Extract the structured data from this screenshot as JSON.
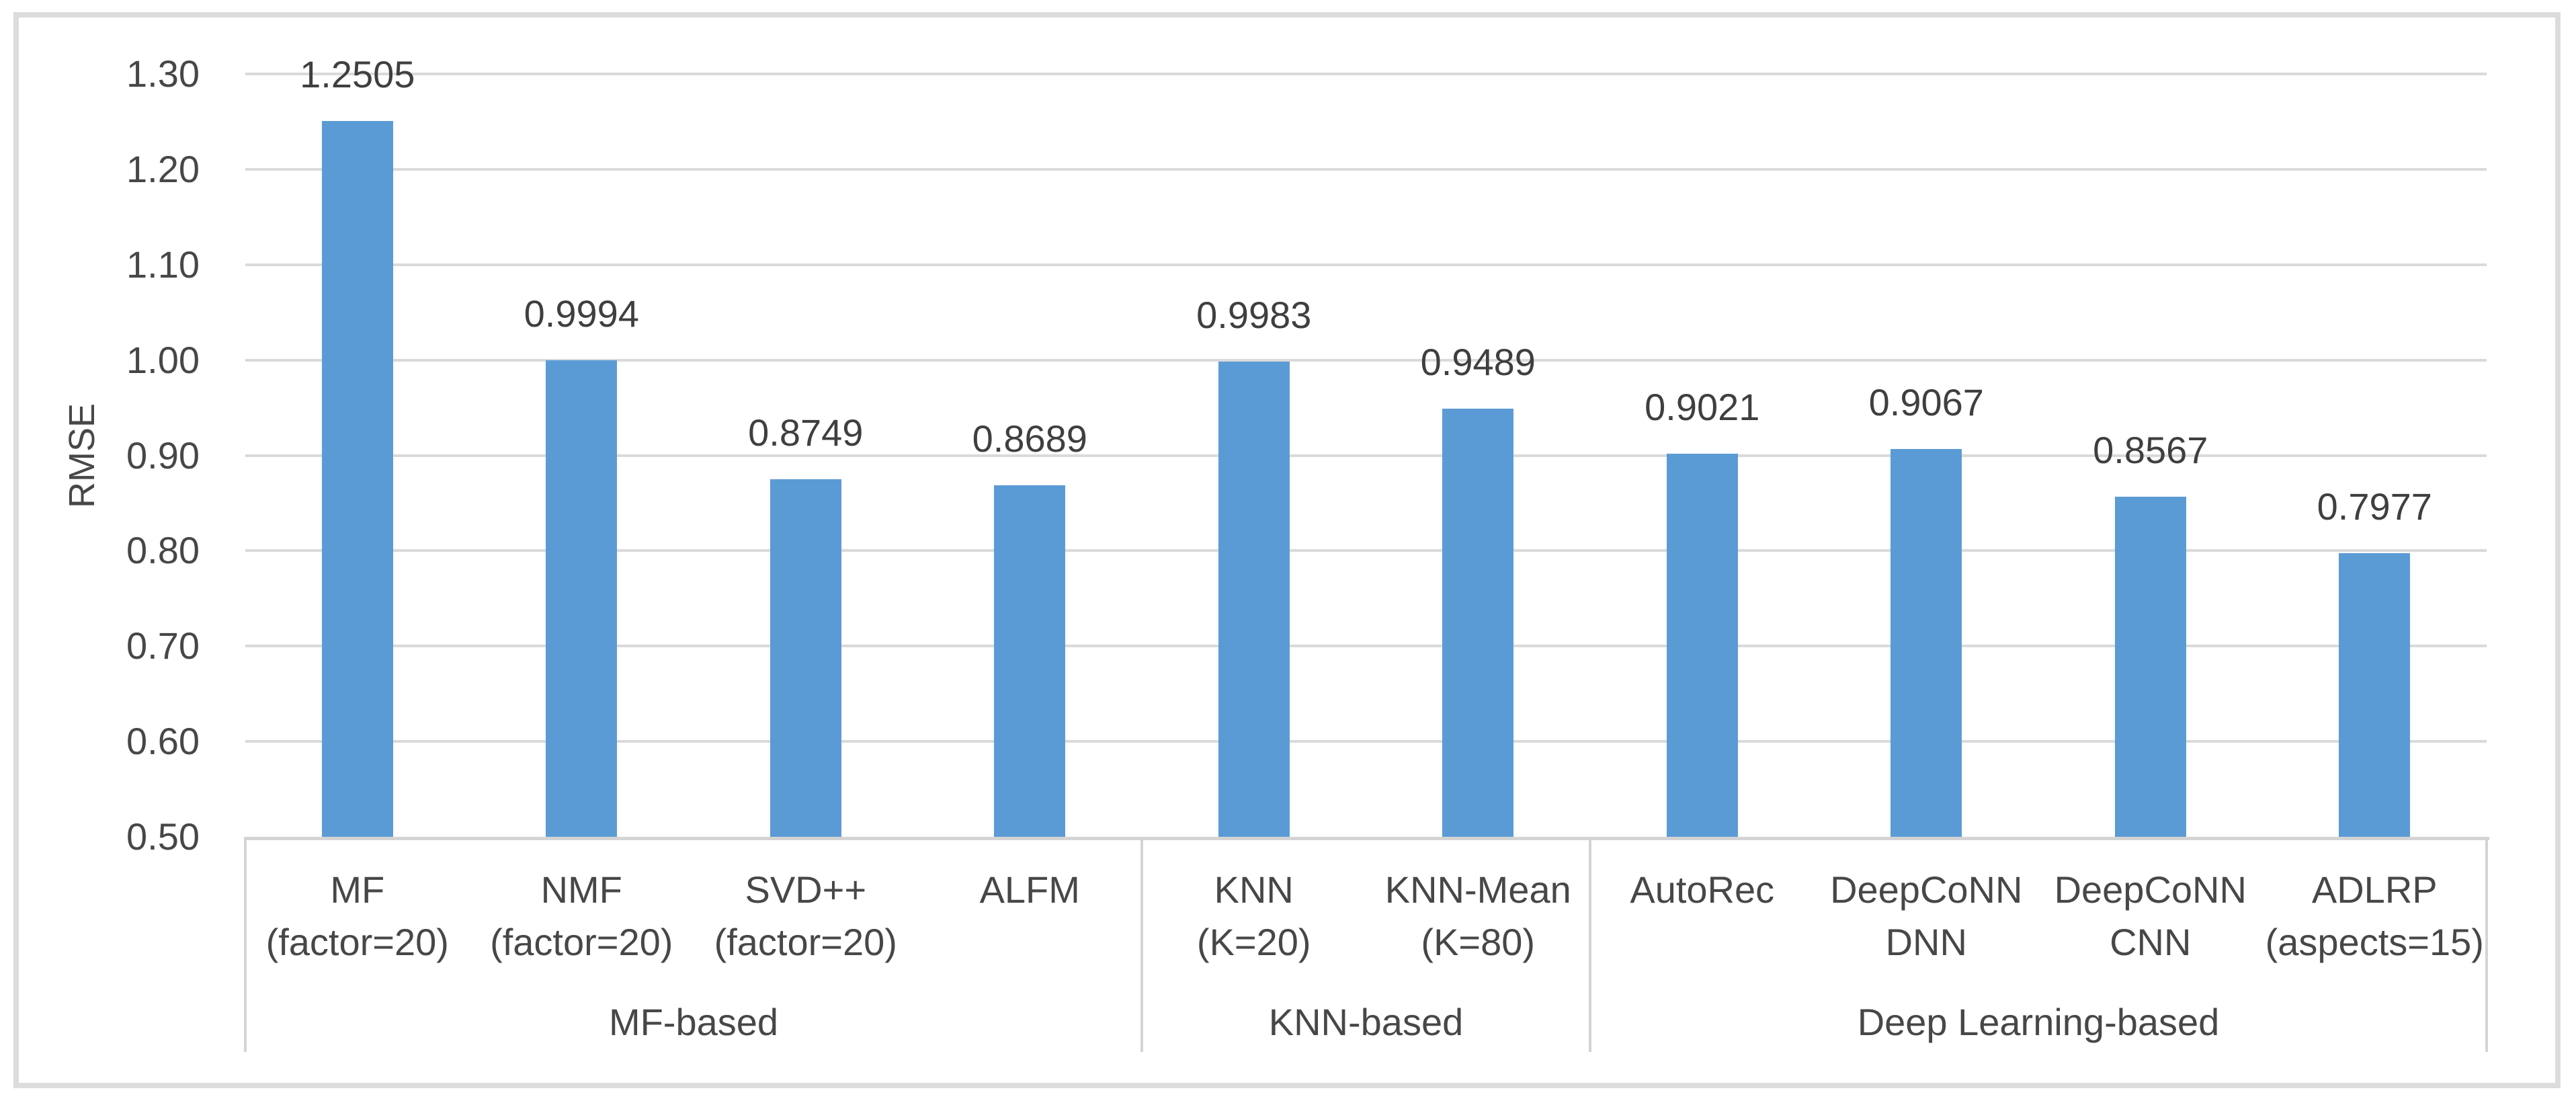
{
  "chart_data": {
    "type": "bar",
    "title": "",
    "xlabel": "",
    "ylabel": "RMSE",
    "ylim": [
      0.5,
      1.3
    ],
    "ytick_step": 0.1,
    "grid": true,
    "legend": false,
    "bar_color": "#5B9BD5",
    "gridline_color": "#DADADA",
    "axis_line_color": "#D4D4D4",
    "border_color": "#DCDCDC",
    "text_color": "#474747",
    "yticks": [
      {
        "label": "1.30",
        "value": 1.3
      },
      {
        "label": "1.20",
        "value": 1.2
      },
      {
        "label": "1.10",
        "value": 1.1
      },
      {
        "label": "1.00",
        "value": 1.0
      },
      {
        "label": "0.90",
        "value": 0.9
      },
      {
        "label": "0.80",
        "value": 0.8
      },
      {
        "label": "0.70",
        "value": 0.7
      },
      {
        "label": "0.60",
        "value": 0.6
      },
      {
        "label": "0.50",
        "value": 0.5
      }
    ],
    "categories": [
      {
        "label_lines": [
          "MF",
          "(factor=20)"
        ],
        "value": 1.2505,
        "value_label": "1.2505"
      },
      {
        "label_lines": [
          "NMF",
          "(factor=20)"
        ],
        "value": 0.9994,
        "value_label": "0.9994"
      },
      {
        "label_lines": [
          "SVD++",
          "(factor=20)"
        ],
        "value": 0.8749,
        "value_label": "0.8749"
      },
      {
        "label_lines": [
          "ALFM"
        ],
        "value": 0.8689,
        "value_label": "0.8689"
      },
      {
        "label_lines": [
          "KNN",
          "(K=20)"
        ],
        "value": 0.9983,
        "value_label": "0.9983"
      },
      {
        "label_lines": [
          "KNN-Mean",
          "(K=80)"
        ],
        "value": 0.9489,
        "value_label": "0.9489"
      },
      {
        "label_lines": [
          "AutoRec"
        ],
        "value": 0.9021,
        "value_label": "0.9021"
      },
      {
        "label_lines": [
          "DeepCoNN",
          "DNN"
        ],
        "value": 0.9067,
        "value_label": "0.9067"
      },
      {
        "label_lines": [
          "DeepCoNN",
          "CNN"
        ],
        "value": 0.8567,
        "value_label": "0.8567"
      },
      {
        "label_lines": [
          "ADLRP",
          "(aspects=15)"
        ],
        "value": 0.7977,
        "value_label": "0.7977"
      }
    ],
    "groups": [
      {
        "label": "MF-based",
        "span": 4
      },
      {
        "label": "KNN-based",
        "span": 2
      },
      {
        "label": "Deep Learning-based",
        "span": 4
      }
    ]
  }
}
